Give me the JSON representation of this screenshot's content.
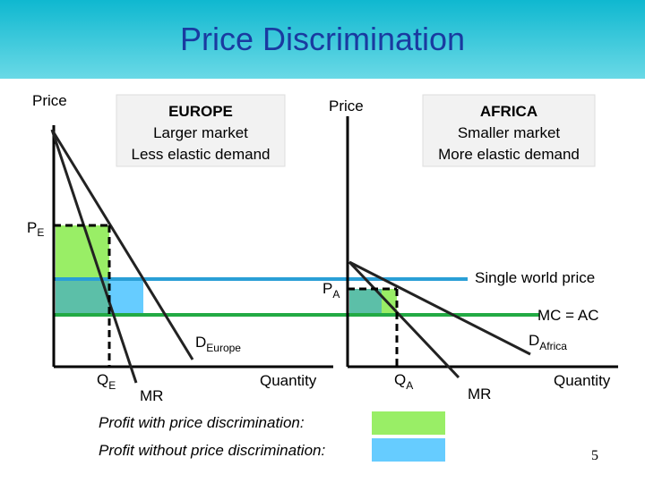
{
  "title": "Price Discrimination",
  "europe": {
    "price_label": "Price",
    "box": [
      "EUROPE",
      "Larger market",
      "Less elastic demand"
    ],
    "price": {
      "main": "P",
      "sub": "E"
    },
    "quantity": {
      "main": "Q",
      "sub": "E"
    },
    "demand": {
      "main": "D",
      "sub": "Europe"
    },
    "mr": "MR",
    "quantity_label": "Quantity"
  },
  "africa": {
    "price_label": "Price",
    "box": [
      "AFRICA",
      "Smaller market",
      "More elastic demand"
    ],
    "price": {
      "main": "P",
      "sub": "A"
    },
    "quantity": {
      "main": "Q",
      "sub": "A"
    },
    "demand": {
      "main": "D",
      "sub": "Africa"
    },
    "mr": "MR",
    "quantity_label": "Quantity"
  },
  "single_world_price": "Single world price",
  "mc": "MC = AC",
  "legend": [
    "Profit with price discrimination:",
    "Profit without price discrimination:"
  ],
  "page_number": "5"
}
